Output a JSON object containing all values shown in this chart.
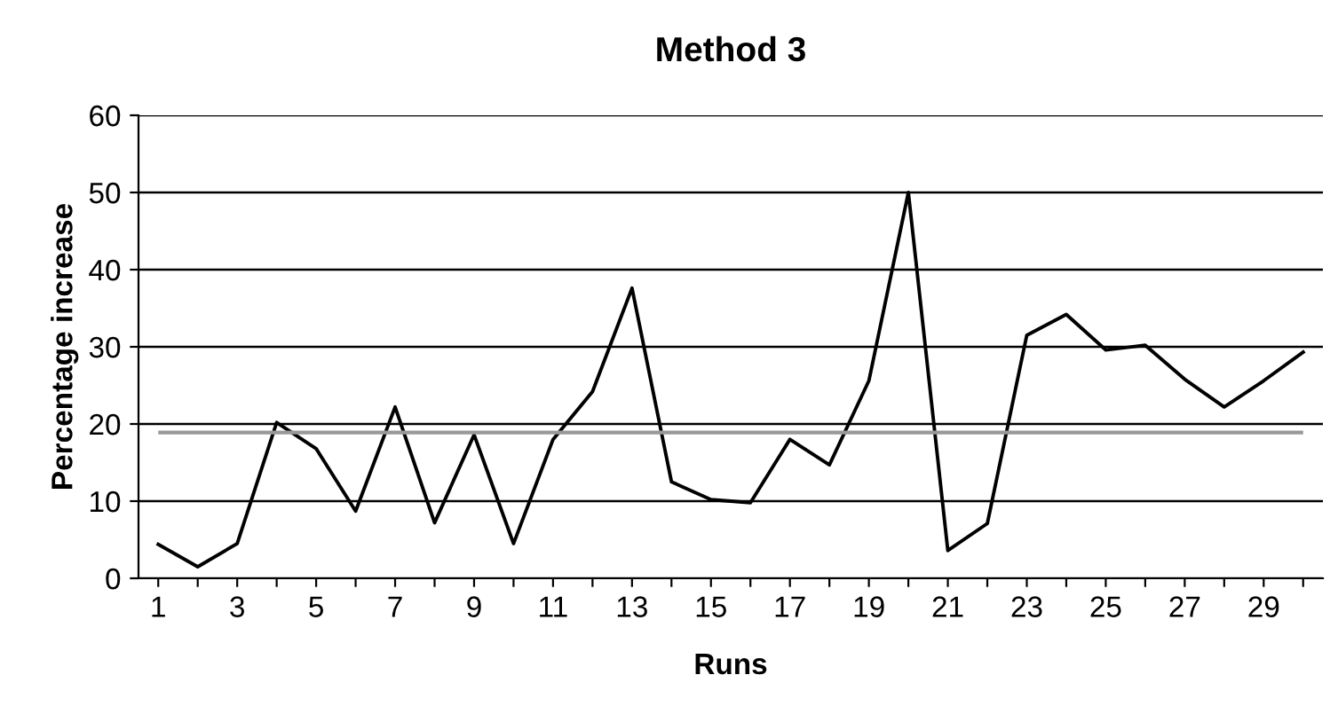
{
  "chart_data": {
    "type": "line",
    "title": "Method 3",
    "xlabel": "Runs",
    "ylabel": "Percentage increase",
    "categories": [
      "1",
      null,
      "3",
      null,
      "5",
      null,
      "7",
      null,
      "9",
      null,
      "11",
      null,
      "13",
      null,
      "15",
      null,
      "17",
      null,
      "19",
      null,
      "21",
      null,
      "23",
      null,
      "25",
      null,
      "27",
      null,
      "29",
      null
    ],
    "series": [
      {
        "color": "#000000",
        "values": [
          4.4,
          1.5,
          4.5,
          20.2,
          16.8,
          8.7,
          22.2,
          7.2,
          18.6,
          4.5,
          18,
          24.2,
          37.6,
          12.5,
          10.2,
          9.8,
          18,
          14.7,
          25.6,
          50,
          3.6,
          7.1,
          31.5,
          34.2,
          29.6,
          30.2,
          25.8,
          22.2,
          25.6,
          29.3
        ]
      }
    ],
    "ylim": [
      0,
      60
    ],
    "yticks": [
      0,
      10,
      20,
      30,
      40,
      50,
      60
    ],
    "grid": "y",
    "legend": false,
    "marker": "none",
    "line_style": "solid",
    "ref_lines": [
      {
        "axis": "y",
        "value": 18.9,
        "color": "#999999"
      }
    ]
  }
}
